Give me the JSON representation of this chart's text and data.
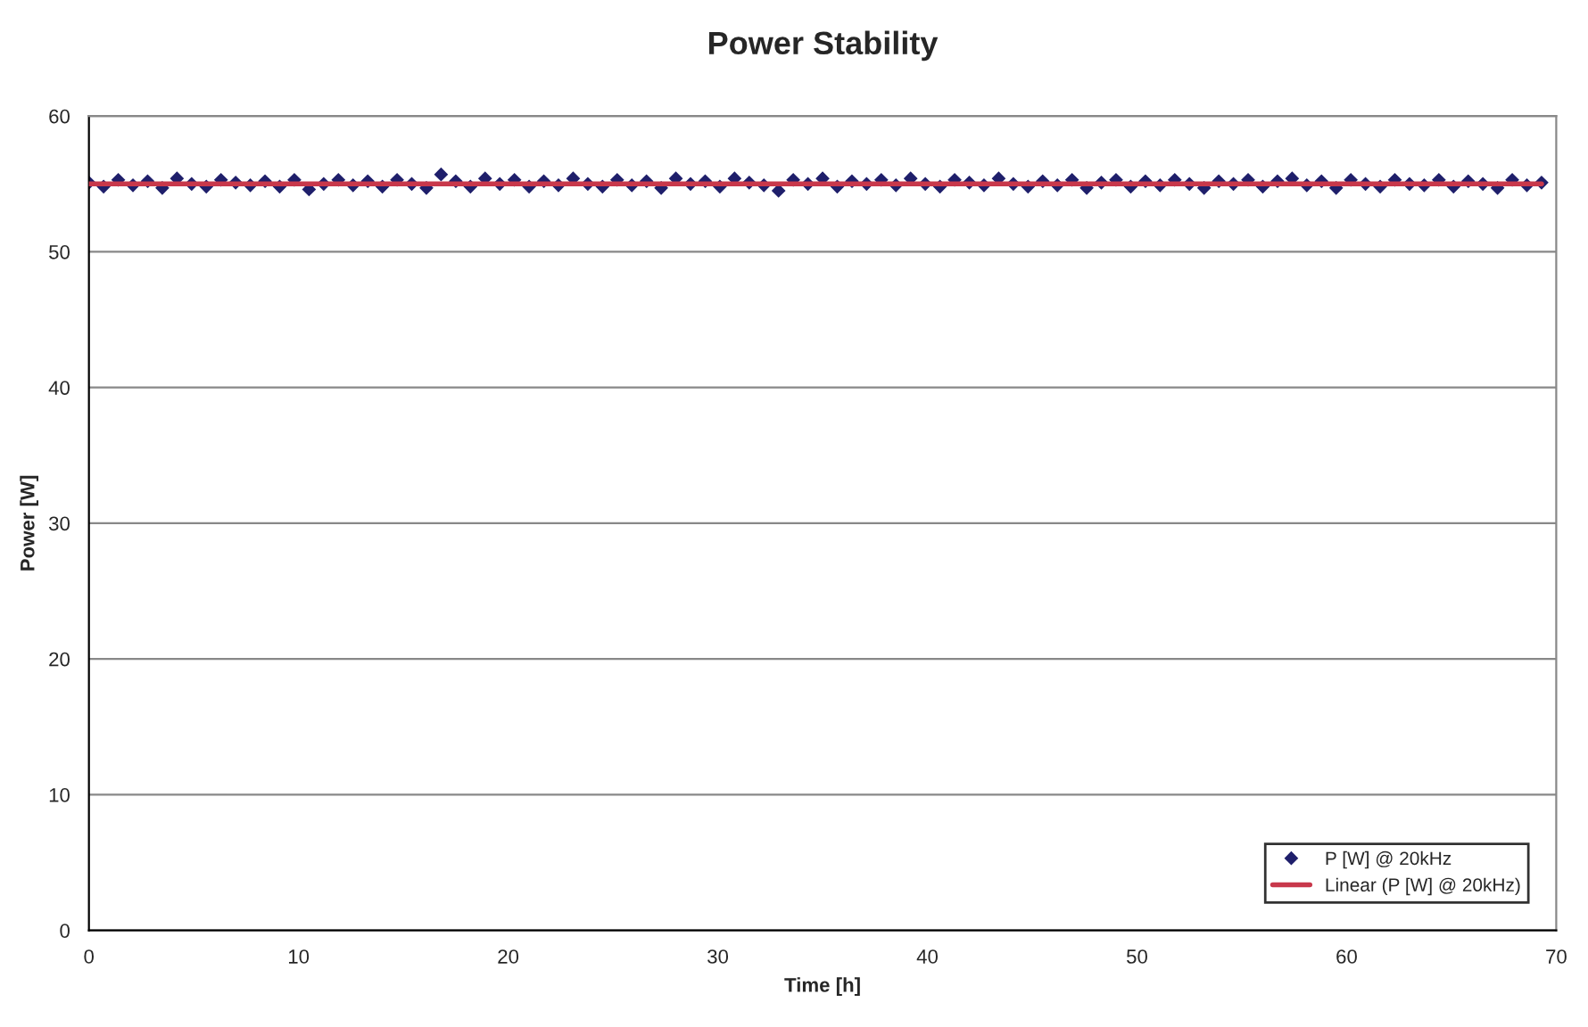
{
  "chart_data": {
    "type": "scatter",
    "title": "Power Stability",
    "xlabel": "Time [h]",
    "ylabel": "Power [W]",
    "x": [
      0,
      0.7,
      1.4,
      2.1,
      2.8,
      3.5,
      4.2,
      4.9,
      5.6,
      6.3,
      7,
      7.7,
      8.4,
      9.1,
      9.8,
      10.5,
      11.2,
      11.9,
      12.6,
      13.3,
      14,
      14.7,
      15.4,
      16.1,
      16.8,
      17.5,
      18.2,
      18.9,
      19.6,
      20.3,
      21,
      21.7,
      22.4,
      23.1,
      23.8,
      24.5,
      25.2,
      25.9,
      26.6,
      27.3,
      28,
      28.7,
      29.4,
      30.1,
      30.8,
      31.5,
      32.2,
      32.9,
      33.6,
      34.3,
      35,
      35.7,
      36.4,
      37.1,
      37.8,
      38.5,
      39.2,
      39.9,
      40.6,
      41.3,
      42,
      42.7,
      43.4,
      44.1,
      44.8,
      45.5,
      46.2,
      46.9,
      47.6,
      48.3,
      49,
      49.7,
      50.4,
      51.1,
      51.8,
      52.5,
      53.2,
      53.9,
      54.6,
      55.3,
      56,
      56.7,
      57.4,
      58.1,
      58.8,
      59.5,
      60.2,
      60.9,
      61.6,
      62.3,
      63,
      63.7,
      64.4,
      65.1,
      65.8,
      66.5,
      67.2,
      67.9,
      68.6,
      69.3
    ],
    "series": [
      {
        "name": "P [W] @ 20kHz",
        "color": "#1f1f6b",
        "marker": "diamond",
        "values": [
          55.1,
          54.8,
          55.3,
          54.9,
          55.2,
          54.7,
          55.4,
          55.0,
          54.8,
          55.3,
          55.1,
          54.9,
          55.2,
          54.8,
          55.3,
          54.6,
          55.0,
          55.3,
          54.9,
          55.2,
          54.8,
          55.3,
          55.0,
          54.7,
          55.7,
          55.2,
          54.8,
          55.4,
          55.0,
          55.3,
          54.8,
          55.2,
          54.9,
          55.4,
          55.0,
          54.8,
          55.3,
          54.9,
          55.2,
          54.7,
          55.4,
          55.0,
          55.2,
          54.8,
          55.4,
          55.1,
          54.9,
          54.5,
          55.3,
          55.0,
          55.4,
          54.8,
          55.2,
          55.0,
          55.3,
          54.9,
          55.4,
          55.0,
          54.8,
          55.3,
          55.1,
          54.9,
          55.4,
          55.0,
          54.8,
          55.2,
          54.9,
          55.3,
          54.7,
          55.1,
          55.3,
          54.8,
          55.2,
          54.9,
          55.3,
          55.0,
          54.7,
          55.2,
          55.0,
          55.3,
          54.8,
          55.2,
          55.4,
          54.9,
          55.2,
          54.7,
          55.3,
          55.0,
          54.8,
          55.3,
          55.0,
          54.9,
          55.3,
          54.8,
          55.2,
          55.0,
          54.7,
          55.3,
          54.9,
          55.1
        ]
      },
      {
        "name": "Linear (P [W] @ 20kHz)",
        "type": "line",
        "color": "#c8384b",
        "marker": "none",
        "x": [
          0,
          69.3
        ],
        "values": [
          55.0,
          55.0
        ]
      }
    ],
    "xlim": [
      0,
      70
    ],
    "ylim": [
      0,
      60
    ],
    "xticks": [
      0,
      10,
      20,
      30,
      40,
      50,
      60,
      70
    ],
    "yticks": [
      0,
      10,
      20,
      30,
      40,
      50,
      60
    ],
    "grid": "y",
    "legend": "bottom right"
  }
}
